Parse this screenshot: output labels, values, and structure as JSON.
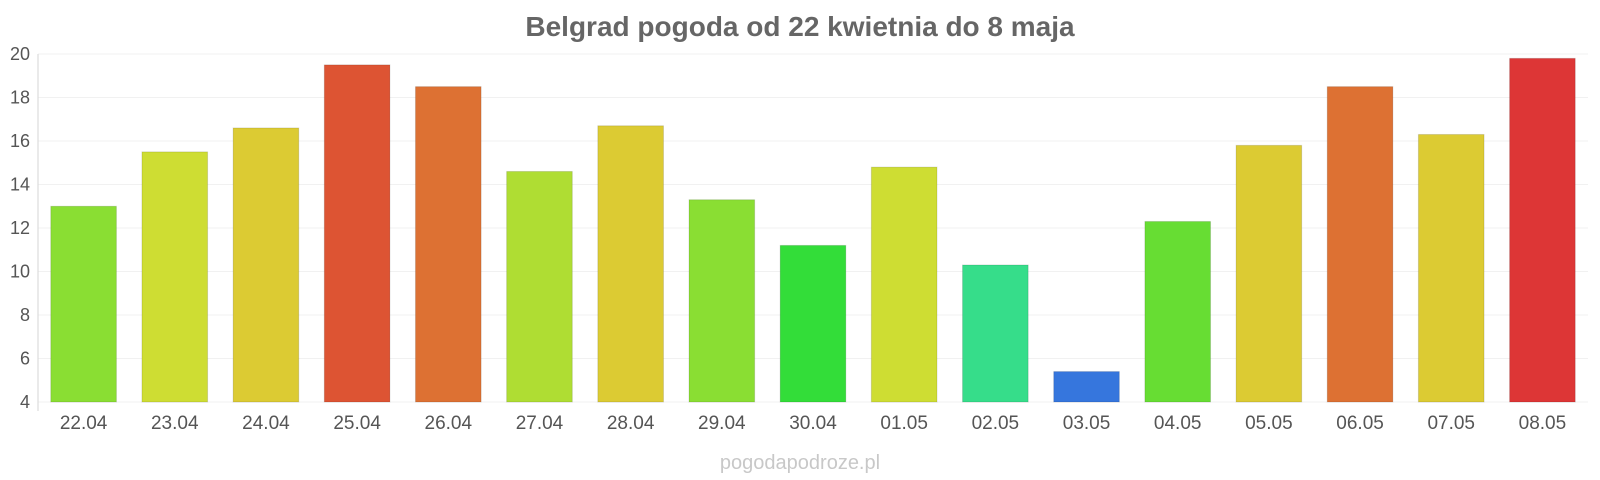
{
  "footer": "pogodapodroze.pl",
  "chart_data": {
    "type": "bar",
    "title": "Belgrad pogoda od 22 kwietnia do 8 maja",
    "xlabel": "",
    "ylabel": "",
    "ylim": [
      4,
      20
    ],
    "yticks": [
      4,
      6,
      8,
      10,
      12,
      14,
      16,
      18,
      20
    ],
    "grid": true,
    "legend": "none",
    "categories": [
      "22.04",
      "23.04",
      "24.04",
      "25.04",
      "26.04",
      "27.04",
      "28.04",
      "29.04",
      "30.04",
      "01.05",
      "02.05",
      "03.05",
      "04.05",
      "05.05",
      "06.05",
      "07.05",
      "08.05"
    ],
    "values": [
      13.0,
      15.5,
      16.6,
      19.5,
      18.5,
      14.6,
      16.7,
      13.3,
      11.2,
      14.8,
      10.3,
      5.4,
      12.3,
      15.8,
      18.5,
      16.3,
      19.8
    ],
    "colors": [
      "#8ade33",
      "#cedd33",
      "#dccb33",
      "#dd5433",
      "#dd7133",
      "#afdd33",
      "#dccb33",
      "#8ade33",
      "#33dd39",
      "#cedd33",
      "#36dd8a",
      "#3676dd",
      "#67dd33",
      "#dccb33",
      "#dd7133",
      "#dccb33",
      "#dd3636"
    ]
  }
}
